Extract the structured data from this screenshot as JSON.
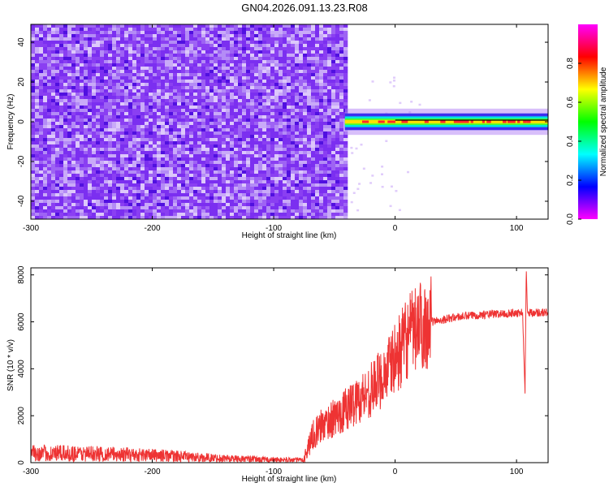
{
  "title": "GN04.2026.091.13.23.R08",
  "chart_data": [
    {
      "type": "heatmap",
      "xlabel": "Height of straight line (km)",
      "ylabel": "Frequency (Hz)",
      "xlim": [
        -300,
        126
      ],
      "ylim": [
        -49,
        49
      ],
      "xticks": [
        -300,
        -200,
        -100,
        0,
        100
      ],
      "yticks": [
        -40,
        -20,
        0,
        20,
        40
      ],
      "grid": false,
      "noise_region_x": [
        -300,
        -40
      ],
      "signal_band_hz": [
        -3,
        3
      ],
      "colorbar": {
        "label": "Normalized spectral amplitude",
        "range": [
          0,
          1
        ],
        "ticks": [
          "0.0",
          "0.2",
          "0.4",
          "0.6",
          "0.8"
        ],
        "colormap": [
          "#ff00ff",
          "#0000ff",
          "#00ffff",
          "#00ff00",
          "#ffff00",
          "#ff0000",
          "#ff00ff"
        ]
      }
    },
    {
      "type": "line",
      "xlabel": "Height of straight line (km)",
      "ylabel": "SNR (10 * v/v)",
      "xlim": [
        -300,
        126
      ],
      "ylim": [
        0,
        8300
      ],
      "xticks": [
        -300,
        -200,
        -100,
        0,
        100
      ],
      "yticks": [
        0,
        2000,
        4000,
        6000,
        8000
      ],
      "color": "#ee3333",
      "grid": false,
      "x": [
        -300,
        -250,
        -200,
        -150,
        -100,
        -75,
        -68,
        -65,
        -60,
        -50,
        -40,
        -30,
        -20,
        -10,
        0,
        10,
        20,
        30,
        50,
        70,
        90,
        105,
        107,
        108,
        109,
        110,
        115,
        126
      ],
      "y": [
        400,
        380,
        320,
        200,
        120,
        120,
        1200,
        1300,
        1600,
        1900,
        2300,
        2700,
        3100,
        3700,
        4400,
        5300,
        5800,
        6000,
        6200,
        6300,
        6350,
        6400,
        2900,
        8300,
        6400,
        6400,
        6400,
        6400
      ]
    }
  ]
}
